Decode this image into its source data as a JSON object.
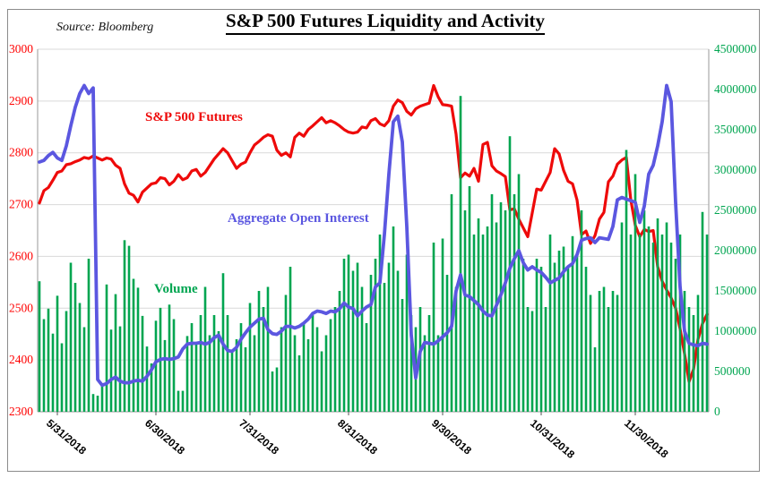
{
  "figure": {
    "title": "S&P 500 Futures Liquidity and Activity",
    "source": "Source: Bloomberg"
  },
  "legend": {
    "sp500": "S&P 500 Futures",
    "open_interest": "Aggregate Open Interest",
    "volume": "Volume"
  },
  "colors": {
    "sp500_line": "#ee0a0a",
    "open_interest_line": "#5b57e0",
    "volume_bar": "#00a550",
    "left_axis_text": "#ff0000",
    "right_axis_text": "#00a550",
    "x_axis_text": "#000000",
    "gridline": "#d9d9d9",
    "axis_line": "#9a9a9a",
    "border": "#8c8c8c"
  },
  "chart_data": {
    "type": "line+bar combo, daily data 5/29/2018 - 12/31/2018",
    "title": "S&P 500 Futures Liquidity and Activity",
    "left_axis": {
      "min": 2300,
      "max": 3000,
      "step": 100,
      "series": "S&P 500 Futures price"
    },
    "right_axis": {
      "min": 0,
      "max": 4500000,
      "step": 500000,
      "series": "Aggregate Open Interest / Volume (contracts)"
    },
    "x_axis": {
      "tick_labels": [
        "5/31/2018",
        "6/30/2018",
        "7/31/2018",
        "8/31/2018",
        "9/30/2018",
        "10/31/2018",
        "11/30/2018"
      ],
      "tick_indices": [
        4,
        26,
        47,
        69,
        90,
        112,
        133
      ],
      "label_rotation_deg": 40,
      "grid": false
    },
    "grid": "horizontal only",
    "legend_position": "inline text labels on plot",
    "n_points": 150,
    "sp500": [
      2703,
      2727,
      2733,
      2747,
      2762,
      2765,
      2777,
      2779,
      2783,
      2786,
      2791,
      2789,
      2794,
      2790,
      2786,
      2790,
      2788,
      2776,
      2770,
      2740,
      2722,
      2718,
      2705,
      2724,
      2732,
      2740,
      2742,
      2752,
      2750,
      2738,
      2745,
      2758,
      2748,
      2752,
      2765,
      2768,
      2755,
      2762,
      2775,
      2788,
      2798,
      2808,
      2800,
      2785,
      2770,
      2778,
      2782,
      2800,
      2815,
      2822,
      2830,
      2835,
      2832,
      2805,
      2795,
      2800,
      2792,
      2830,
      2838,
      2832,
      2845,
      2852,
      2860,
      2868,
      2858,
      2862,
      2858,
      2852,
      2845,
      2840,
      2838,
      2840,
      2850,
      2848,
      2862,
      2866,
      2856,
      2852,
      2862,
      2890,
      2902,
      2897,
      2880,
      2873,
      2885,
      2890,
      2893,
      2896,
      2930,
      2908,
      2893,
      2892,
      2890,
      2836,
      2752,
      2761,
      2755,
      2770,
      2745,
      2816,
      2820,
      2775,
      2765,
      2760,
      2754,
      2690,
      2692,
      2672,
      2655,
      2638,
      2684,
      2730,
      2728,
      2745,
      2762,
      2808,
      2798,
      2766,
      2745,
      2740,
      2709,
      2642,
      2649,
      2625,
      2640,
      2672,
      2685,
      2744,
      2755,
      2778,
      2786,
      2791,
      2709,
      2660,
      2638,
      2652,
      2648,
      2650,
      2580,
      2552,
      2535,
      2520,
      2500,
      2460,
      2412,
      2358,
      2382,
      2440,
      2470,
      2488
    ],
    "open_interest": [
      3100000,
      3120000,
      3180000,
      3220000,
      3150000,
      3120000,
      3300000,
      3550000,
      3780000,
      3950000,
      4050000,
      3950000,
      4020000,
      400000,
      330000,
      350000,
      400000,
      430000,
      380000,
      360000,
      360000,
      380000,
      390000,
      380000,
      440000,
      520000,
      620000,
      650000,
      660000,
      650000,
      660000,
      680000,
      780000,
      840000,
      850000,
      850000,
      860000,
      840000,
      860000,
      920000,
      950000,
      840000,
      760000,
      750000,
      800000,
      900000,
      980000,
      1050000,
      1100000,
      1150000,
      1160000,
      1020000,
      970000,
      960000,
      1000000,
      1060000,
      1060000,
      1040000,
      1060000,
      1100000,
      1150000,
      1220000,
      1250000,
      1240000,
      1220000,
      1250000,
      1240000,
      1280000,
      1350000,
      1300000,
      1280000,
      1190000,
      1250000,
      1300000,
      1330000,
      1550000,
      1600000,
      2200000,
      2950000,
      3600000,
      3670000,
      3350000,
      2300000,
      950000,
      420000,
      750000,
      860000,
      850000,
      840000,
      880000,
      930000,
      980000,
      1060000,
      1500000,
      1700000,
      1450000,
      1430000,
      1380000,
      1330000,
      1250000,
      1200000,
      1190000,
      1320000,
      1450000,
      1600000,
      1780000,
      1900000,
      2000000,
      1850000,
      1760000,
      1800000,
      1760000,
      1730000,
      1670000,
      1600000,
      1630000,
      1660000,
      1740000,
      1800000,
      1840000,
      1950000,
      2130000,
      2150000,
      2160000,
      2100000,
      2160000,
      2150000,
      2140000,
      2300000,
      2630000,
      2660000,
      2640000,
      2620000,
      2600000,
      2350000,
      2550000,
      2950000,
      3060000,
      3300000,
      3600000,
      4050000,
      3850000,
      2600000,
      1550000,
      1000000,
      850000,
      830000,
      820000,
      850000,
      840000
    ],
    "volume": [
      1620000,
      1150000,
      1280000,
      970000,
      1440000,
      850000,
      1250000,
      1850000,
      1600000,
      1350000,
      1050000,
      1900000,
      220000,
      200000,
      350000,
      1580000,
      1020000,
      1460000,
      1060000,
      2130000,
      2060000,
      1650000,
      1540000,
      1190000,
      810000,
      600000,
      1130000,
      1290000,
      890000,
      1330000,
      1150000,
      260000,
      260000,
      940000,
      1100000,
      850000,
      1200000,
      1550000,
      950000,
      1200000,
      1000000,
      1720000,
      1200000,
      750000,
      900000,
      1100000,
      800000,
      1350000,
      950000,
      1500000,
      1300000,
      1550000,
      500000,
      550000,
      1050000,
      1450000,
      1800000,
      950000,
      700000,
      1100000,
      900000,
      1200000,
      1050000,
      750000,
      950000,
      1150000,
      1300000,
      1500000,
      1900000,
      1950000,
      1750000,
      1850000,
      1550000,
      1100000,
      1700000,
      1900000,
      2200000,
      1600000,
      1850000,
      2300000,
      1750000,
      1400000,
      1950000,
      1200000,
      1050000,
      1300000,
      950000,
      1200000,
      2100000,
      950000,
      2150000,
      1700000,
      2700000,
      1550000,
      3920000,
      2500000,
      2800000,
      2200000,
      2400000,
      2200000,
      2300000,
      2700000,
      2350000,
      2600000,
      2500000,
      3420000,
      2700000,
      2950000,
      1900000,
      1300000,
      1250000,
      1900000,
      1800000,
      1300000,
      2200000,
      1850000,
      2000000,
      2050000,
      1800000,
      2180000,
      1950000,
      2500000,
      1800000,
      1450000,
      800000,
      1500000,
      1550000,
      1300000,
      1500000,
      1450000,
      2350000,
      3250000,
      2200000,
      2950000,
      2200000,
      2500000,
      2300000,
      2100000,
      2400000,
      2200000,
      2350000,
      2100000,
      1900000,
      2200000,
      1500000,
      1300000,
      1200000,
      1450000,
      2480000,
      2200000
    ]
  }
}
